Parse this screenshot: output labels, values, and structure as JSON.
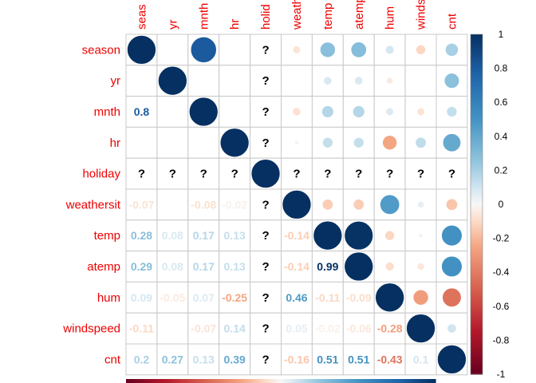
{
  "chart_data": {
    "type": "heatmap",
    "variables": [
      "season",
      "yr",
      "mnth",
      "hr",
      "holiday",
      "weathersit",
      "temp",
      "atemp",
      "hum",
      "windspeed",
      "cnt"
    ],
    "column_labels_visible": [
      "seas",
      "yr",
      "mnth",
      "hr",
      "holid",
      "weath",
      "temp",
      "atemp",
      "hum",
      "winds",
      "cnt"
    ],
    "missing_symbol": "?",
    "upper_method": "circle",
    "lower_method": "number",
    "matrix": [
      [
        1,
        0,
        0.8,
        0,
        null,
        -0.07,
        0.28,
        0.29,
        0.09,
        -0.11,
        0.2
      ],
      [
        0,
        1,
        0,
        0,
        null,
        0,
        0.08,
        0.08,
        -0.05,
        0,
        0.27
      ],
      [
        0.8,
        0,
        1,
        0,
        null,
        -0.08,
        0.17,
        0.17,
        0.07,
        -0.07,
        0.13
      ],
      [
        0,
        0,
        0,
        1,
        null,
        -0.02,
        0.13,
        0.13,
        -0.25,
        0.14,
        0.39
      ],
      [
        null,
        null,
        null,
        null,
        1,
        null,
        null,
        null,
        null,
        null,
        null
      ],
      [
        -0.07,
        0,
        -0.08,
        -0.02,
        null,
        1,
        -0.14,
        -0.14,
        0.46,
        0.05,
        -0.16
      ],
      [
        0.28,
        0.08,
        0.17,
        0.13,
        null,
        -0.14,
        1,
        0.99,
        -0.11,
        -0.02,
        0.51
      ],
      [
        0.29,
        0.08,
        0.17,
        0.13,
        null,
        -0.14,
        0.99,
        1,
        -0.09,
        -0.06,
        0.51
      ],
      [
        0.09,
        -0.05,
        0.07,
        -0.25,
        null,
        0.46,
        -0.11,
        -0.09,
        1,
        -0.28,
        -0.43
      ],
      [
        -0.11,
        0,
        -0.07,
        0.14,
        null,
        0.05,
        -0.02,
        -0.06,
        -0.28,
        1,
        0.1
      ],
      [
        0.2,
        0.27,
        0.13,
        0.39,
        null,
        -0.16,
        0.51,
        0.51,
        -0.43,
        0.1,
        1
      ]
    ],
    "colorbar": {
      "range": [
        -1,
        1
      ],
      "ticks": [
        "1",
        "0.8",
        "0.6",
        "0.4",
        "0.2",
        "0",
        "-0.2",
        "-0.4",
        "-0.6",
        "-0.8",
        "-1"
      ],
      "color_low": "#67001F",
      "color_mid": "#F7F7F7",
      "color_high": "#053061"
    },
    "grid": true,
    "legend_position": "right"
  }
}
